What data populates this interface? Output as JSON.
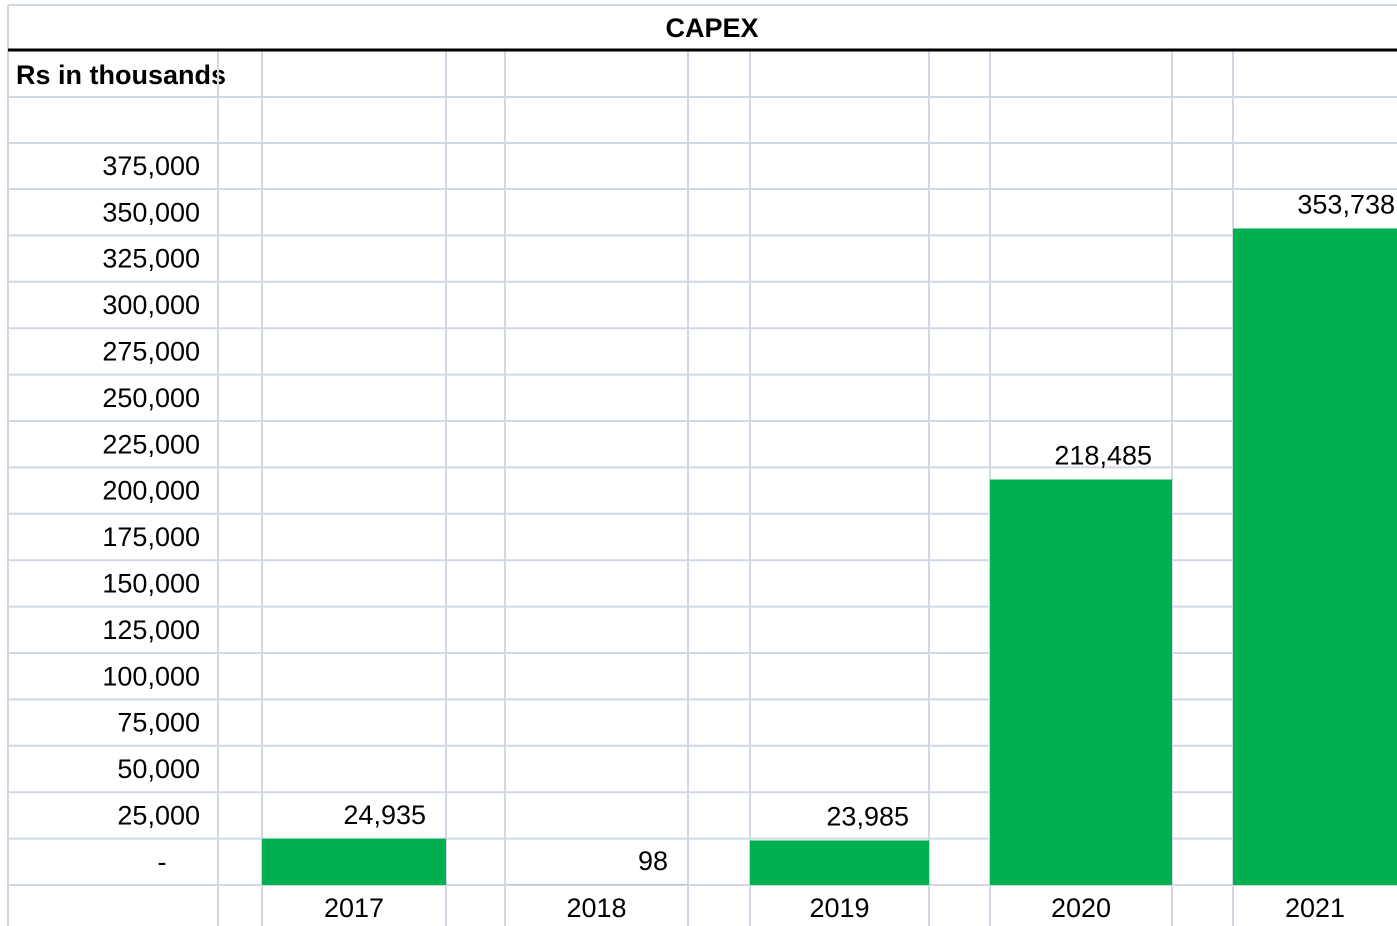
{
  "chart_data": {
    "type": "bar",
    "title": "CAPEX",
    "y_label": "Rs in thousands",
    "categories": [
      "2017",
      "2018",
      "2019",
      "2020",
      "2021"
    ],
    "values": [
      24935,
      98,
      23985,
      218485,
      353738
    ],
    "value_labels": [
      "24,935",
      "98",
      "23,985",
      "218,485",
      "353,738"
    ],
    "color": "#00b050",
    "ylim": [
      0,
      375000
    ],
    "yticks": [
      {
        "value": 0,
        "label": "-"
      },
      {
        "value": 25000,
        "label": "25,000"
      },
      {
        "value": 50000,
        "label": "50,000"
      },
      {
        "value": 75000,
        "label": "75,000"
      },
      {
        "value": 100000,
        "label": "100,000"
      },
      {
        "value": 125000,
        "label": "125,000"
      },
      {
        "value": 150000,
        "label": "150,000"
      },
      {
        "value": 175000,
        "label": "175,000"
      },
      {
        "value": 200000,
        "label": "200,000"
      },
      {
        "value": 225000,
        "label": "225,000"
      },
      {
        "value": 250000,
        "label": "250,000"
      },
      {
        "value": 275000,
        "label": "275,000"
      },
      {
        "value": 300000,
        "label": "300,000"
      },
      {
        "value": 325000,
        "label": "325,000"
      },
      {
        "value": 350000,
        "label": "350,000"
      },
      {
        "value": 375000,
        "label": "375,000"
      }
    ],
    "grid": true
  }
}
